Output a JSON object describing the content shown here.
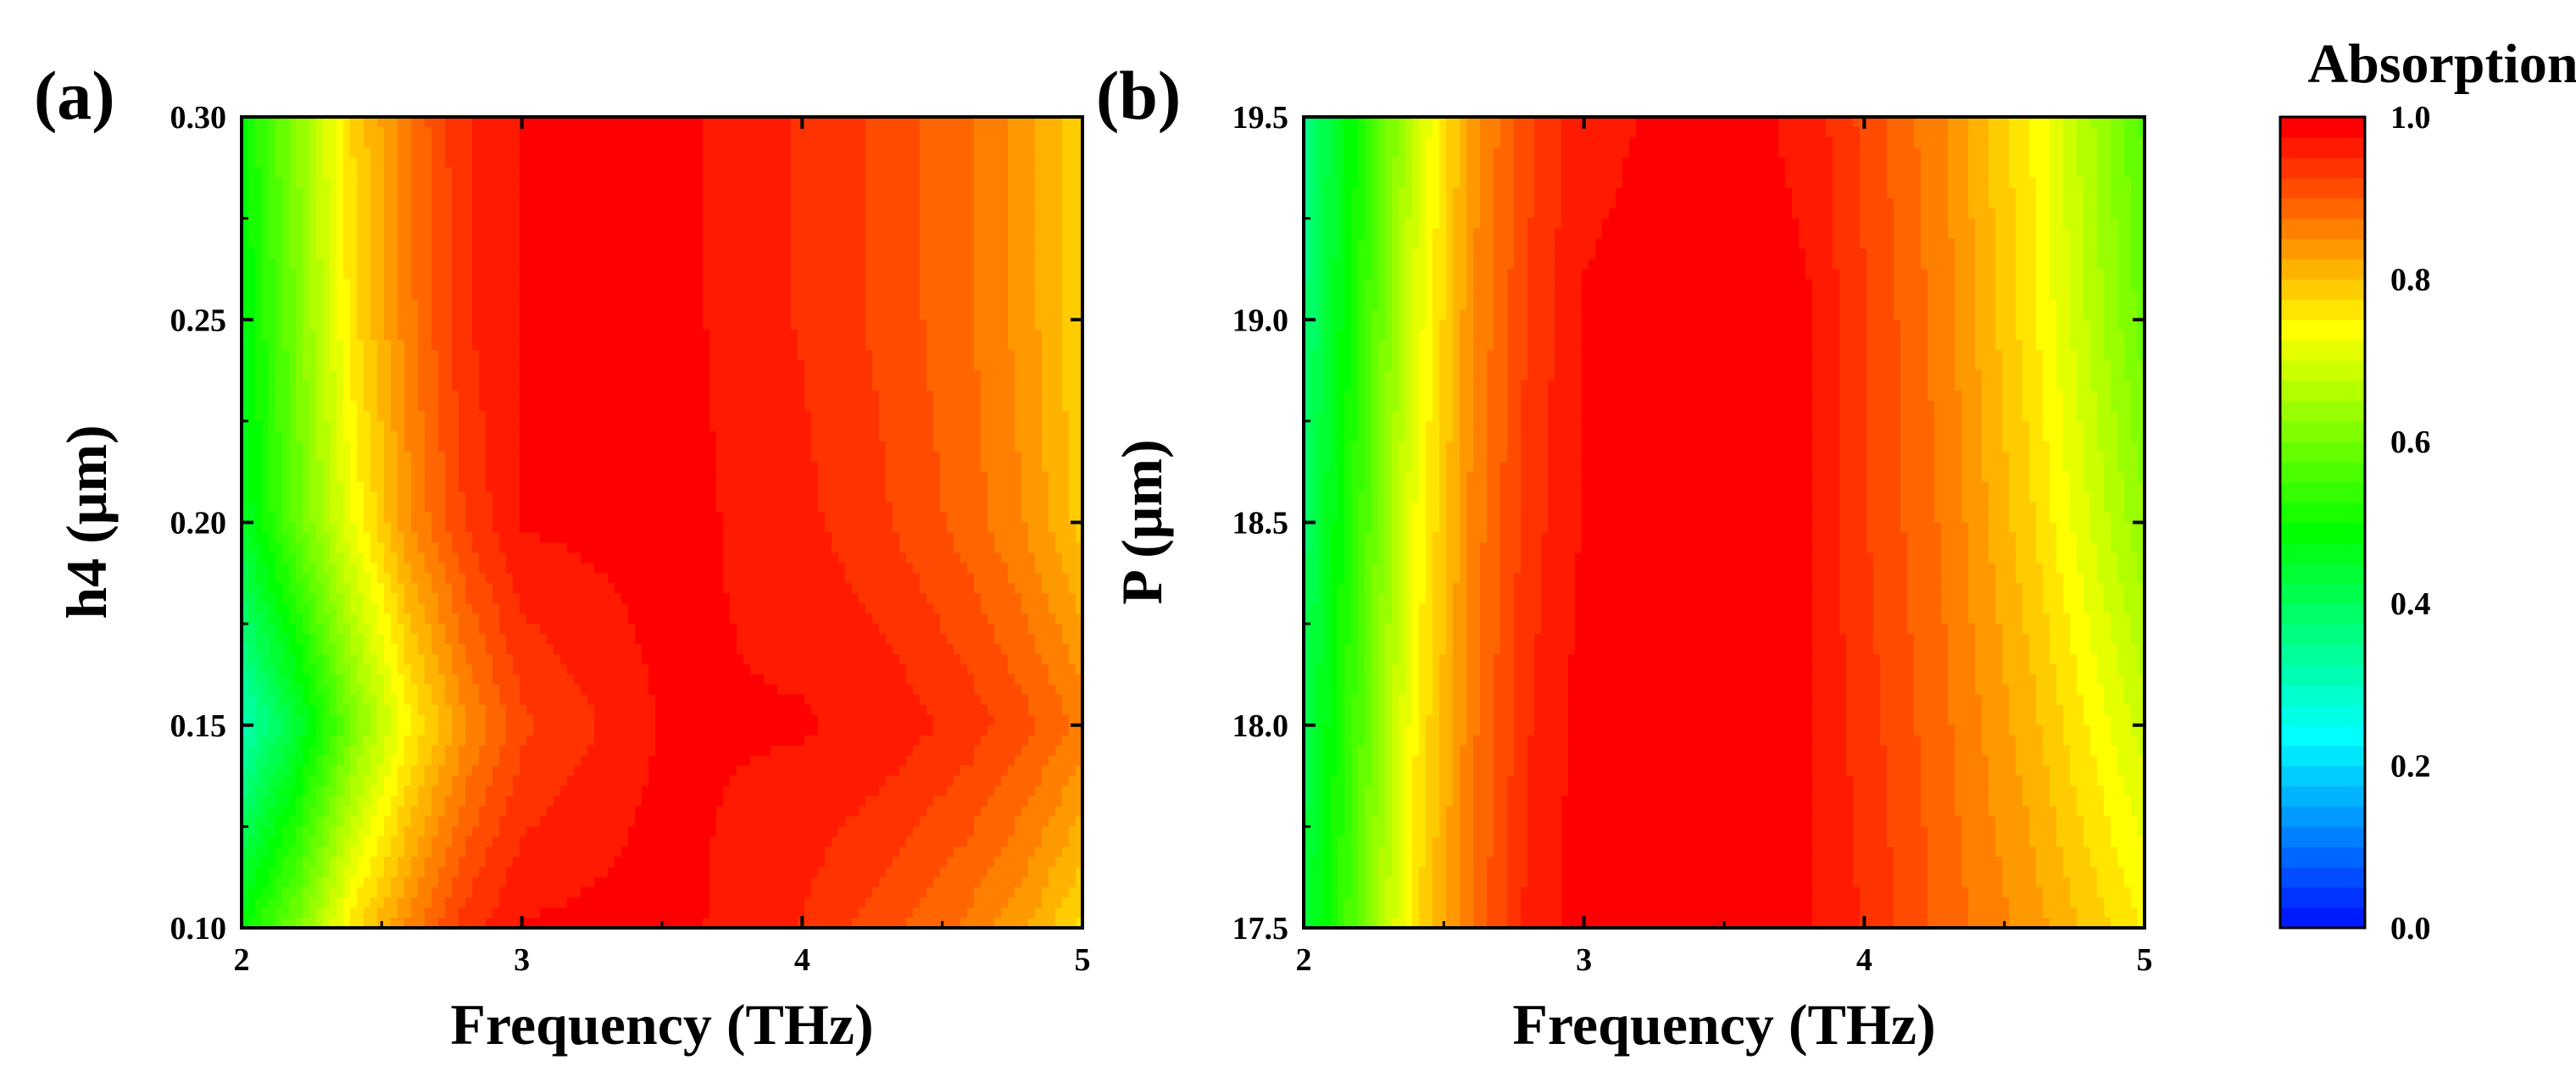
{
  "chart_data": [
    {
      "type": "heatmap",
      "panel_label": "(a)",
      "xlabel": "Frequency (THz)",
      "ylabel": "h4 (μm)",
      "xlim": [
        2,
        5
      ],
      "ylim": [
        0.1,
        0.3
      ],
      "xticks": [
        2,
        3,
        4,
        5
      ],
      "xtick_labels": [
        "2",
        "3",
        "4",
        "5"
      ],
      "yticks": [
        0.1,
        0.15,
        0.2,
        0.25,
        0.3
      ],
      "ytick_labels": [
        "0.10",
        "0.15",
        "0.20",
        "0.25",
        "0.30"
      ],
      "x": [
        2.0,
        2.2,
        2.4,
        2.6,
        2.8,
        3.0,
        3.5,
        4.0,
        4.3,
        4.6,
        4.8,
        5.0
      ],
      "y": [
        0.1,
        0.15,
        0.2,
        0.25,
        0.3
      ],
      "z": [
        [
          0.5,
          0.62,
          0.78,
          0.87,
          0.95,
          0.99,
          1.0,
          0.96,
          0.92,
          0.88,
          0.84,
          0.78
        ],
        [
          0.32,
          0.45,
          0.62,
          0.76,
          0.86,
          0.93,
          0.99,
          0.99,
          0.98,
          0.95,
          0.92,
          0.88
        ],
        [
          0.46,
          0.6,
          0.74,
          0.86,
          0.94,
          0.99,
          1.0,
          0.97,
          0.94,
          0.9,
          0.86,
          0.8
        ],
        [
          0.48,
          0.62,
          0.78,
          0.88,
          0.96,
          0.99,
          1.0,
          0.96,
          0.93,
          0.89,
          0.85,
          0.79
        ],
        [
          0.5,
          0.64,
          0.79,
          0.89,
          0.96,
          0.99,
          1.0,
          0.96,
          0.93,
          0.89,
          0.85,
          0.79
        ]
      ]
    },
    {
      "type": "heatmap",
      "panel_label": "(b)",
      "xlabel": "Frequency (THz)",
      "ylabel": "P (μm)",
      "xlim": [
        2,
        5
      ],
      "ylim": [
        17.5,
        19.5
      ],
      "xticks": [
        2,
        3,
        4,
        5
      ],
      "xtick_labels": [
        "2",
        "3",
        "4",
        "5"
      ],
      "yticks": [
        17.5,
        18.0,
        18.5,
        19.0,
        19.5
      ],
      "ytick_labels": [
        "17.5",
        "18.0",
        "18.5",
        "19.0",
        "19.5"
      ],
      "x": [
        2.0,
        2.2,
        2.4,
        2.6,
        2.8,
        3.0,
        3.5,
        3.8,
        4.0,
        4.3,
        4.6,
        5.0
      ],
      "y": [
        17.5,
        18.0,
        18.5,
        19.0,
        19.5
      ],
      "z": [
        [
          0.44,
          0.6,
          0.78,
          0.89,
          0.97,
          1.0,
          1.0,
          0.99,
          0.96,
          0.9,
          0.85,
          0.76
        ],
        [
          0.42,
          0.58,
          0.76,
          0.88,
          0.96,
          1.0,
          1.0,
          0.99,
          0.95,
          0.89,
          0.82,
          0.7
        ],
        [
          0.4,
          0.56,
          0.74,
          0.87,
          0.95,
          0.99,
          1.0,
          0.99,
          0.94,
          0.88,
          0.79,
          0.64
        ],
        [
          0.38,
          0.54,
          0.72,
          0.86,
          0.94,
          0.99,
          1.0,
          0.99,
          0.94,
          0.87,
          0.77,
          0.6
        ],
        [
          0.37,
          0.52,
          0.7,
          0.85,
          0.93,
          0.98,
          1.0,
          0.98,
          0.93,
          0.86,
          0.76,
          0.58
        ]
      ]
    }
  ],
  "colorbar": {
    "title": "Absorption",
    "min": 0.0,
    "max": 1.0,
    "ticks": [
      0.0,
      0.2,
      0.4,
      0.6,
      0.8,
      1.0
    ],
    "tick_labels": [
      "0.0",
      "0.2",
      "0.4",
      "0.6",
      "0.8",
      "1.0"
    ],
    "colormap": "rainbow",
    "colormap_stops": [
      "#0000ff",
      "#00ffff",
      "#00ff00",
      "#ffff00",
      "#ff0000"
    ]
  }
}
